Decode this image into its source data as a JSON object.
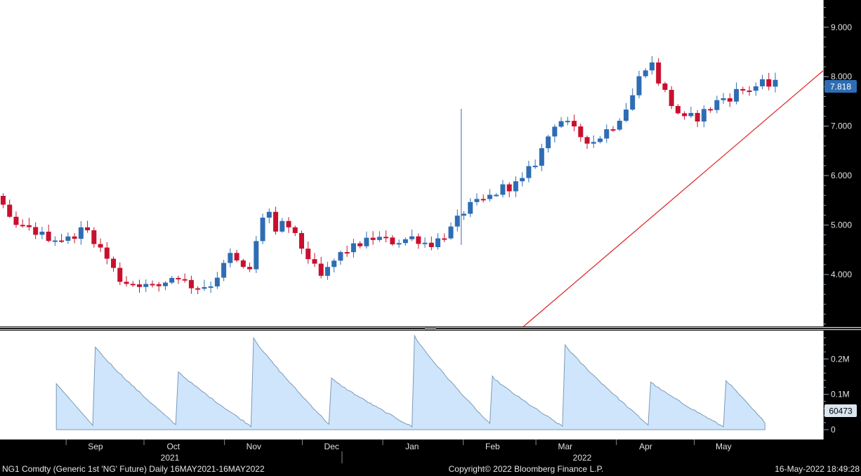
{
  "chart_data": [
    {
      "type": "candlestick",
      "series_name": "NG1 Comdty",
      "y_ticks": [
        "4.000",
        "5.000",
        "6.000",
        "7.000",
        "8.000",
        "9.000"
      ],
      "ylim": [
        2.95,
        9.55
      ],
      "last_value": "7.818",
      "colors": {
        "up": "#2e6db3",
        "down": "#c8102e",
        "trendline": "#e02020",
        "background": "#ffffff",
        "last_badge": "#2e6db3"
      },
      "trendline": {
        "start": [
          "2022-02-08",
          2.95
        ],
        "end": [
          "2022-05-16",
          8.12
        ]
      },
      "anchors": [
        [
          "2021-05-17",
          5.35
        ],
        [
          "2021-05-24",
          4.85
        ],
        [
          "2021-05-31",
          5.2
        ],
        [
          "2021-06-07",
          5.9
        ],
        [
          "2021-06-14",
          5.95
        ],
        [
          "2021-06-21",
          5.25
        ],
        [
          "2021-06-28",
          5.55
        ],
        [
          "2021-07-05",
          5.05
        ],
        [
          "2021-07-12",
          5.95
        ],
        [
          "2021-07-19",
          5.65
        ],
        [
          "2021-07-26",
          5.0
        ],
        [
          "2021-08-02",
          4.9
        ],
        [
          "2021-08-09",
          4.75
        ],
        [
          "2021-08-16",
          4.7
        ],
        [
          "2021-08-23",
          4.95
        ],
        [
          "2021-08-30",
          4.45
        ],
        [
          "2021-09-06",
          3.85
        ],
        [
          "2021-09-13",
          3.8
        ],
        [
          "2021-09-20",
          3.75
        ],
        [
          "2021-09-27",
          4.0
        ],
        [
          "2021-10-04",
          3.72
        ],
        [
          "2021-10-11",
          3.8
        ],
        [
          "2021-10-18",
          4.4
        ],
        [
          "2021-10-25",
          4.0
        ],
        [
          "2021-11-01",
          5.5
        ],
        [
          "2021-11-04",
          4.75
        ],
        [
          "2021-11-08",
          5.1
        ],
        [
          "2021-11-15",
          4.5
        ],
        [
          "2021-11-22",
          3.95
        ],
        [
          "2021-11-29",
          4.4
        ],
        [
          "2021-12-06",
          4.6
        ],
        [
          "2021-12-13",
          4.75
        ],
        [
          "2021-12-20",
          4.65
        ],
        [
          "2021-12-27",
          4.75
        ],
        [
          "2022-01-03",
          4.6
        ],
        [
          "2022-01-10",
          4.85
        ],
        [
          "2022-01-17",
          5.35
        ],
        [
          "2022-01-24",
          5.5
        ],
        [
          "2022-01-31",
          5.75
        ],
        [
          "2022-02-07",
          5.85
        ],
        [
          "2022-02-14",
          6.4
        ],
        [
          "2022-02-21",
          7.2
        ],
        [
          "2022-02-28",
          6.85
        ],
        [
          "2022-03-07",
          6.7
        ],
        [
          "2022-03-14",
          7.0
        ],
        [
          "2022-03-21",
          7.5
        ],
        [
          "2022-03-28",
          8.4
        ],
        [
          "2022-04-04",
          7.6
        ],
        [
          "2022-04-11",
          7.1
        ],
        [
          "2022-04-18",
          7.25
        ],
        [
          "2022-04-25",
          7.55
        ],
        [
          "2022-05-02",
          7.7
        ],
        [
          "2022-05-09",
          7.818
        ],
        [
          "2022-05-16",
          7.818
        ]
      ]
    },
    {
      "type": "area",
      "series_name": "Open Interest",
      "y_ticks": [
        "0",
        "0.1M",
        "0.2M"
      ],
      "ylim": [
        0,
        0.28
      ],
      "last_value": "60473",
      "colors": {
        "fill": "#cfe5fb",
        "line": "#7a9ab8",
        "background": "#ffffff"
      }
    }
  ],
  "x_axis": {
    "months": [
      "Sep",
      "Oct",
      "Nov",
      "Dec",
      "Jan",
      "Feb",
      "Mar",
      "Apr",
      "May"
    ],
    "years": [
      "2021",
      "2022"
    ]
  },
  "footer": {
    "ticker": "NG1 Comdty (Generic 1st 'NG' Future)  Daily 16MAY2021-16MAY2022",
    "copyright": "Copyright© 2022 Bloomberg Finance L.P.",
    "timestamp": "16-May-2022 18:49:28"
  }
}
